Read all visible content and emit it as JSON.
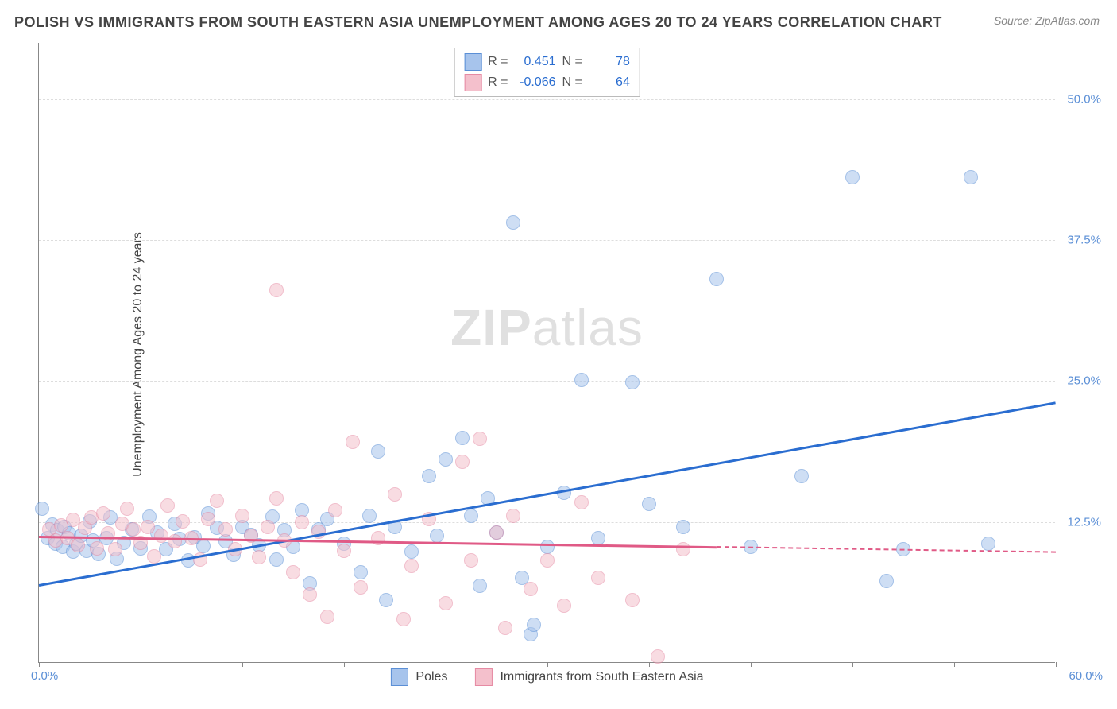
{
  "title": "POLISH VS IMMIGRANTS FROM SOUTH EASTERN ASIA UNEMPLOYMENT AMONG AGES 20 TO 24 YEARS CORRELATION CHART",
  "source": "Source: ZipAtlas.com",
  "ylabel": "Unemployment Among Ages 20 to 24 years",
  "watermark_a": "ZIP",
  "watermark_b": "atlas",
  "chart": {
    "type": "scatter",
    "xlim": [
      0,
      60
    ],
    "ylim": [
      0,
      55
    ],
    "x_tick_positions": [
      0,
      6,
      12,
      18,
      24,
      30,
      36,
      42,
      48,
      54,
      60
    ],
    "x_tick_labels": {
      "left": "0.0%",
      "right": "60.0%"
    },
    "y_gridlines": [
      12.5,
      25.0,
      37.5,
      50.0
    ],
    "y_tick_labels": [
      "12.5%",
      "25.0%",
      "37.5%",
      "50.0%"
    ],
    "background_color": "#ffffff",
    "grid_color": "#dddddd",
    "axis_color": "#888888",
    "marker_radius": 9,
    "marker_opacity": 0.55,
    "series": [
      {
        "name": "Poles",
        "fill": "#a7c4ec",
        "stroke": "#5b8fd6",
        "r_label": "R =",
        "r_value": "0.451",
        "n_label": "N =",
        "n_value": "78",
        "trend": {
          "x1": 0,
          "y1": 7.0,
          "x2": 60,
          "y2": 23.2,
          "color": "#2a6dd0",
          "solid_until_x": 60
        },
        "points": [
          [
            0.2,
            13.6
          ],
          [
            0.5,
            11.0
          ],
          [
            0.8,
            12.2
          ],
          [
            1.0,
            10.5
          ],
          [
            1.1,
            11.7
          ],
          [
            1.4,
            10.2
          ],
          [
            1.5,
            12.0
          ],
          [
            1.8,
            11.4
          ],
          [
            2.0,
            9.8
          ],
          [
            2.2,
            10.5
          ],
          [
            2.5,
            11.2
          ],
          [
            2.8,
            9.9
          ],
          [
            3.0,
            12.5
          ],
          [
            3.2,
            10.8
          ],
          [
            3.5,
            9.6
          ],
          [
            4.0,
            11.0
          ],
          [
            4.2,
            12.8
          ],
          [
            4.6,
            9.2
          ],
          [
            5.0,
            10.6
          ],
          [
            5.5,
            11.8
          ],
          [
            6.0,
            10.1
          ],
          [
            6.5,
            12.9
          ],
          [
            7.0,
            11.5
          ],
          [
            7.5,
            10.0
          ],
          [
            8.0,
            12.3
          ],
          [
            8.3,
            10.9
          ],
          [
            8.8,
            9.0
          ],
          [
            9.2,
            11.1
          ],
          [
            9.7,
            10.3
          ],
          [
            10.0,
            13.2
          ],
          [
            10.5,
            11.9
          ],
          [
            11.0,
            10.7
          ],
          [
            11.5,
            9.5
          ],
          [
            12.0,
            12.0
          ],
          [
            12.5,
            11.3
          ],
          [
            13.0,
            10.4
          ],
          [
            13.8,
            12.9
          ],
          [
            14.0,
            9.1
          ],
          [
            14.5,
            11.7
          ],
          [
            15.0,
            10.2
          ],
          [
            15.5,
            13.5
          ],
          [
            16.0,
            7.0
          ],
          [
            16.5,
            11.8
          ],
          [
            17.0,
            12.7
          ],
          [
            18.0,
            10.5
          ],
          [
            19.0,
            8.0
          ],
          [
            19.5,
            13.0
          ],
          [
            20.0,
            18.7
          ],
          [
            20.5,
            5.5
          ],
          [
            21.0,
            12.0
          ],
          [
            22.0,
            9.8
          ],
          [
            23.0,
            16.5
          ],
          [
            23.5,
            11.2
          ],
          [
            24.0,
            18.0
          ],
          [
            25.0,
            19.9
          ],
          [
            25.5,
            13.0
          ],
          [
            26.0,
            6.8
          ],
          [
            26.5,
            14.5
          ],
          [
            27.0,
            11.5
          ],
          [
            28.0,
            39.0
          ],
          [
            28.5,
            7.5
          ],
          [
            29.0,
            2.5
          ],
          [
            29.2,
            3.3
          ],
          [
            30.0,
            10.2
          ],
          [
            31.0,
            15.0
          ],
          [
            32.0,
            25.0
          ],
          [
            33.0,
            11.0
          ],
          [
            35.0,
            24.8
          ],
          [
            36.0,
            14.0
          ],
          [
            38.0,
            12.0
          ],
          [
            40.0,
            34.0
          ],
          [
            42.0,
            10.2
          ],
          [
            45.0,
            16.5
          ],
          [
            48.0,
            43.0
          ],
          [
            50.0,
            7.2
          ],
          [
            51.0,
            10
          ],
          [
            55.0,
            43.0
          ],
          [
            56.0,
            10.5
          ]
        ]
      },
      {
        "name": "Immigrants from South Eastern Asia",
        "fill": "#f4c0cc",
        "stroke": "#e68aa3",
        "r_label": "R =",
        "r_value": "-0.066",
        "n_label": "N =",
        "n_value": "64",
        "trend": {
          "x1": 0,
          "y1": 11.3,
          "x2": 60,
          "y2": 9.9,
          "color": "#e05a86",
          "solid_until_x": 40
        },
        "points": [
          [
            0.6,
            11.8
          ],
          [
            1.0,
            10.8
          ],
          [
            1.3,
            12.1
          ],
          [
            1.7,
            11.0
          ],
          [
            2.0,
            12.6
          ],
          [
            2.3,
            10.4
          ],
          [
            2.7,
            11.9
          ],
          [
            3.1,
            12.8
          ],
          [
            3.4,
            10.1
          ],
          [
            3.8,
            13.2
          ],
          [
            4.1,
            11.4
          ],
          [
            4.5,
            10.0
          ],
          [
            4.9,
            12.3
          ],
          [
            5.2,
            13.6
          ],
          [
            5.6,
            11.8
          ],
          [
            6.0,
            10.6
          ],
          [
            6.4,
            12.0
          ],
          [
            6.8,
            9.4
          ],
          [
            7.2,
            11.2
          ],
          [
            7.6,
            13.9
          ],
          [
            8.0,
            10.7
          ],
          [
            8.5,
            12.5
          ],
          [
            9.0,
            11.0
          ],
          [
            9.5,
            9.1
          ],
          [
            10.0,
            12.7
          ],
          [
            10.5,
            14.3
          ],
          [
            11.0,
            11.8
          ],
          [
            11.6,
            10.0
          ],
          [
            12.0,
            13.0
          ],
          [
            12.5,
            11.2
          ],
          [
            13.0,
            9.3
          ],
          [
            13.5,
            12.0
          ],
          [
            14.0,
            14.5
          ],
          [
            14.0,
            33.0
          ],
          [
            14.5,
            10.8
          ],
          [
            15.0,
            8.0
          ],
          [
            15.5,
            12.4
          ],
          [
            16.0,
            6.0
          ],
          [
            16.5,
            11.6
          ],
          [
            17.0,
            4.0
          ],
          [
            17.5,
            13.5
          ],
          [
            18.0,
            9.9
          ],
          [
            18.5,
            19.5
          ],
          [
            19.0,
            6.6
          ],
          [
            20.0,
            11.0
          ],
          [
            21.0,
            14.9
          ],
          [
            21.5,
            3.8
          ],
          [
            22.0,
            8.5
          ],
          [
            23.0,
            12.7
          ],
          [
            24.0,
            5.2
          ],
          [
            25.0,
            17.8
          ],
          [
            25.5,
            9.0
          ],
          [
            26.0,
            19.8
          ],
          [
            27.0,
            11.5
          ],
          [
            27.5,
            3.0
          ],
          [
            28.0,
            13.0
          ],
          [
            29.0,
            6.5
          ],
          [
            30.0,
            9.0
          ],
          [
            31.0,
            5.0
          ],
          [
            32.0,
            14.2
          ],
          [
            33.0,
            7.5
          ],
          [
            35.0,
            5.5
          ],
          [
            36.5,
            0.5
          ],
          [
            38.0,
            10.0
          ]
        ]
      }
    ]
  },
  "legend_bottom": {
    "series1_label": "Poles",
    "series2_label": "Immigrants from South Eastern Asia"
  }
}
